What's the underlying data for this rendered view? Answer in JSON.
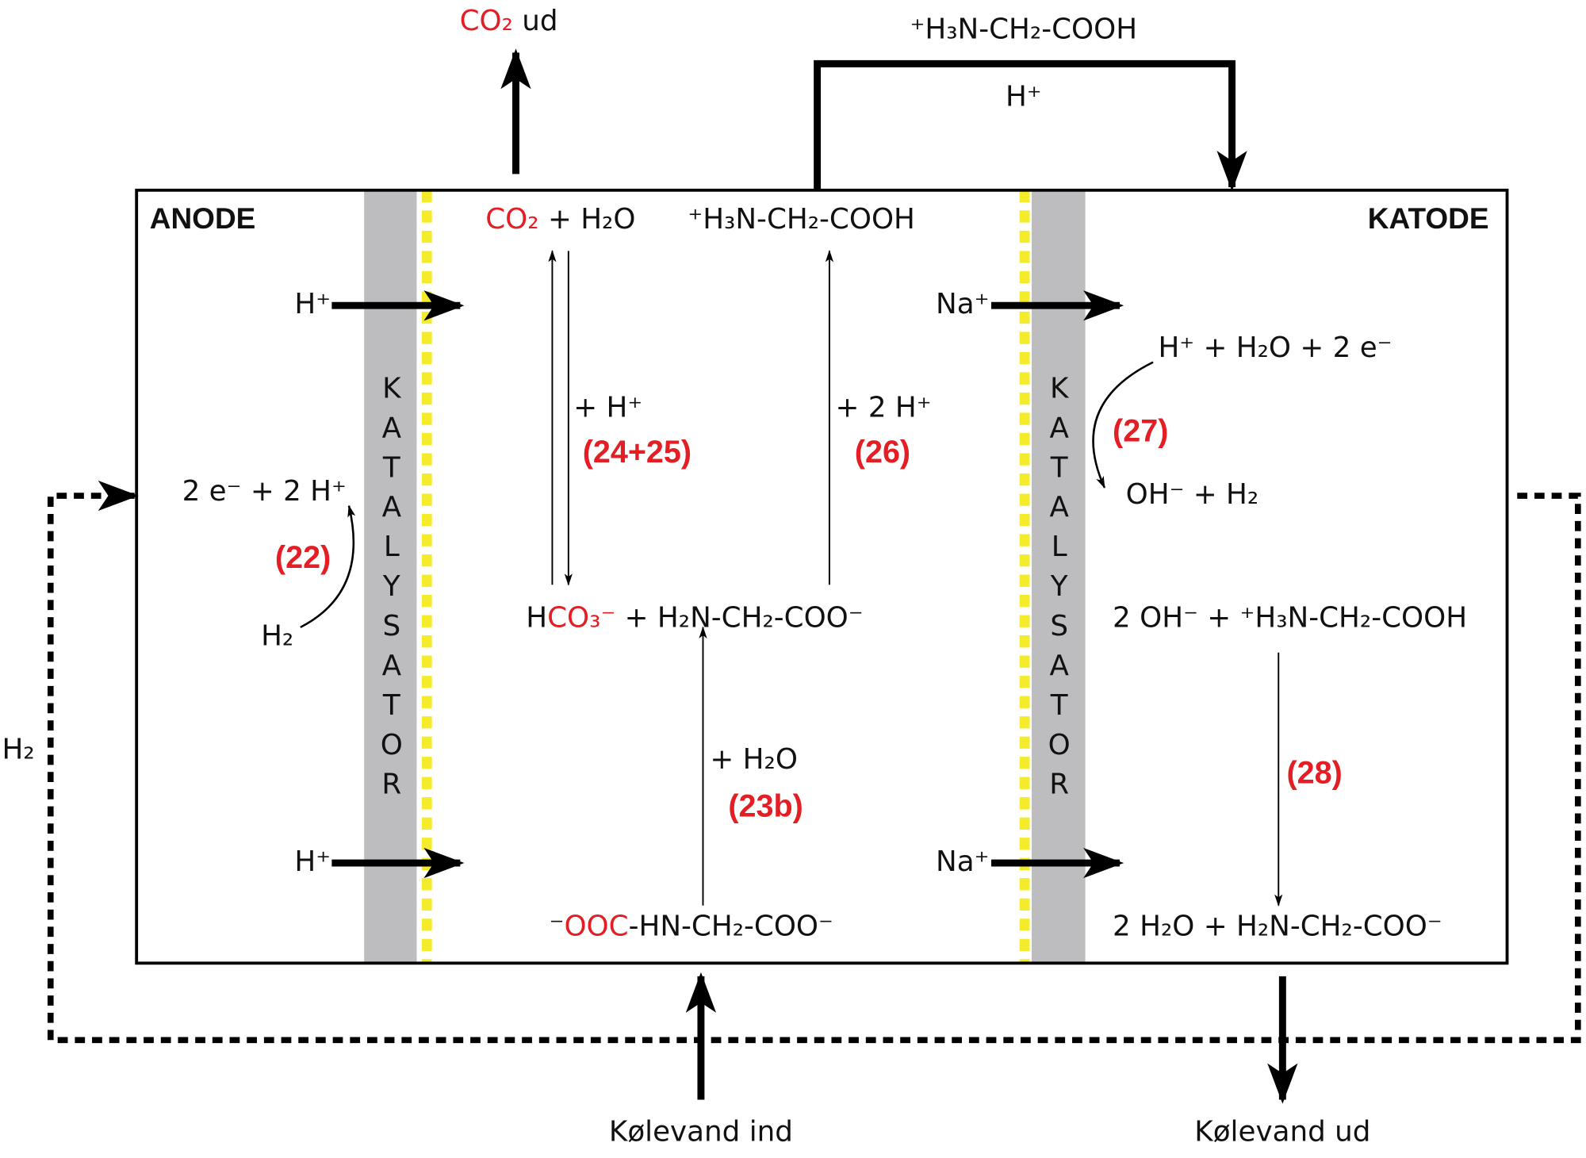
{
  "top": {
    "co2_out": [
      "CO₂",
      " ud"
    ],
    "glycine_transfer": "⁺H₃N-CH₂-COOH",
    "proton_transfer": "H⁺"
  },
  "anode": {
    "title": "ANODE",
    "catalyst": "KATALYSATOR",
    "proton_in_top": "H⁺",
    "proton_in_bottom": "H⁺",
    "products": "2 e⁻ + 2 H⁺",
    "reactant": "H₂",
    "reaction": "(22)"
  },
  "middle": {
    "co2_water": [
      "CO₂",
      " + H₂O"
    ],
    "glycine_cation": "⁺H₃N-CH₂-COOH",
    "step_24_25_reagent": "+ H⁺",
    "step_24_25": "(24+25)",
    "step_26_reagent": "+ 2 H⁺",
    "step_26": "(26)",
    "bicarbonate": [
      "H",
      "CO₃⁻",
      " + H₂N-CH₂-COO⁻"
    ],
    "step_23b_reagent": "+ H₂O",
    "step_23b": "(23b)",
    "carbamate": [
      "⁻",
      "OOC",
      "-HN-CH₂-COO⁻"
    ]
  },
  "cathode": {
    "title": "KATODE",
    "catalyst": "KATALYSATOR",
    "sodium_in_top": "Na⁺",
    "sodium_in_bottom": "Na⁺",
    "reactants_27": "H⁺ + H₂O + 2 e⁻",
    "reaction_27": "(27)",
    "products_27": "OH⁻ + H₂",
    "reactants_28": "2 OH⁻ + ⁺H₃N-CH₂-COOH",
    "reaction_28": "(28)",
    "products_28": "2 H₂O + H₂N-CH₂-COO⁻"
  },
  "flows": {
    "coolant_in": "Kølevand ind",
    "coolant_out": "Kølevand ud",
    "hydrogen_loop": "H₂"
  }
}
